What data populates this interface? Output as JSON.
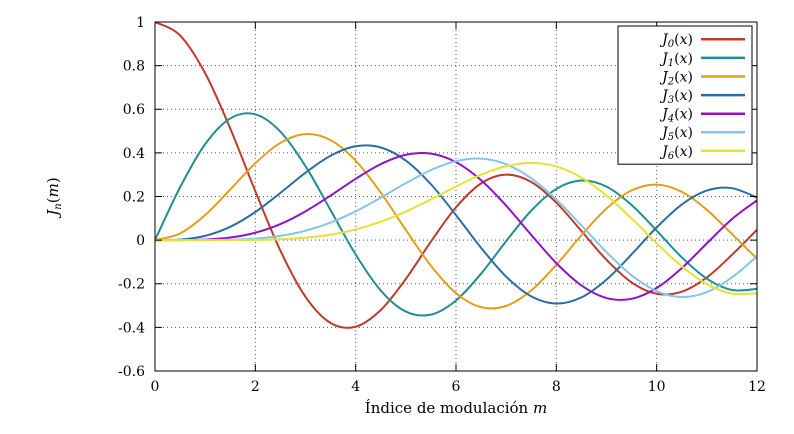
{
  "chart_data": {
    "type": "line",
    "title": "",
    "xlabel": "Índice de modulación m",
    "ylabel": "J_n(m)",
    "xlim": [
      0,
      12
    ],
    "ylim": [
      -0.6,
      1
    ],
    "xticks": [
      0,
      2,
      4,
      6,
      8,
      10,
      12
    ],
    "xtick_labels": [
      "0",
      "2",
      "4",
      "6",
      "8",
      "10",
      "12"
    ],
    "yticks": [
      -0.6,
      -0.4,
      -0.2,
      0,
      0.2,
      0.4,
      0.6,
      0.8,
      1
    ],
    "ytick_labels": [
      "-0.6",
      "-0.4",
      "-0.2",
      "0",
      "0.2",
      "0.4",
      "0.6",
      "0.8",
      "1"
    ],
    "grid": "dotted",
    "legend_position": "top-right",
    "colors": {
      "background": "#ffffff",
      "border": "#000000",
      "grid": "#555555",
      "text": "#000000"
    },
    "x": [
      0,
      0.5,
      1,
      1.5,
      2,
      2.5,
      3,
      3.5,
      4,
      4.5,
      5,
      5.5,
      6,
      6.5,
      7,
      7.5,
      8,
      8.5,
      9,
      9.5,
      10,
      10.5,
      11,
      11.5,
      12
    ],
    "series": [
      {
        "name": "J_0(x)",
        "color": "#c0392b",
        "values": [
          1,
          0.9385,
          0.7652,
          0.5118,
          0.2239,
          -0.0484,
          -0.2601,
          -0.3801,
          -0.3971,
          -0.3205,
          -0.1776,
          -0.0068,
          0.1506,
          0.2601,
          0.3001,
          0.2663,
          0.1717,
          0.0419,
          -0.0903,
          -0.1939,
          -0.2459,
          -0.2366,
          -0.1712,
          -0.0677,
          0.0477
        ]
      },
      {
        "name": "J_1(x)",
        "color": "#1e8f92",
        "values": [
          0,
          0.2423,
          0.4401,
          0.5579,
          0.5767,
          0.4971,
          0.3391,
          0.1374,
          -0.066,
          -0.2311,
          -0.3276,
          -0.3414,
          -0.2767,
          -0.1538,
          -0.0047,
          0.1352,
          0.2346,
          0.2731,
          0.2453,
          0.1613,
          0.0435,
          -0.0789,
          -0.1768,
          -0.2284,
          -0.2234
        ]
      },
      {
        "name": "J_2(x)",
        "color": "#e2a019",
        "values": [
          0,
          0.0306,
          0.1149,
          0.2321,
          0.3528,
          0.4461,
          0.4861,
          0.4586,
          0.3641,
          0.2178,
          0.0466,
          -0.1173,
          -0.2429,
          -0.3074,
          -0.3014,
          -0.2303,
          -0.113,
          0.0223,
          0.1448,
          0.2279,
          0.2546,
          0.2216,
          0.139,
          0.028,
          -0.0849
        ]
      },
      {
        "name": "J_3(x)",
        "color": "#2e6da4",
        "values": [
          0,
          0.0026,
          0.0196,
          0.061,
          0.1289,
          0.2166,
          0.3091,
          0.3868,
          0.4302,
          0.4247,
          0.3648,
          0.2561,
          0.1148,
          -0.0353,
          -0.1676,
          -0.258,
          -0.2911,
          -0.2626,
          -0.1809,
          -0.0653,
          0.0584,
          0.1633,
          0.2273,
          0.2381,
          0.1951
        ]
      },
      {
        "name": "J_4(x)",
        "color": "#9013c7",
        "values": [
          0,
          0.0002,
          0.0025,
          0.0118,
          0.034,
          0.0738,
          0.132,
          0.2044,
          0.2811,
          0.3484,
          0.3912,
          0.3967,
          0.3576,
          0.2748,
          0.1578,
          0.0239,
          -0.1054,
          -0.2077,
          -0.2655,
          -0.2691,
          -0.2196,
          -0.1283,
          -0.015,
          0.0962,
          0.1825
        ]
      },
      {
        "name": "J_5(x)",
        "color": "#86c5e8",
        "values": [
          0,
          0,
          0.0002,
          0.0018,
          0.007,
          0.0195,
          0.043,
          0.0804,
          0.1321,
          0.1947,
          0.2611,
          0.3209,
          0.3621,
          0.3736,
          0.3479,
          0.2835,
          0.1858,
          0.0671,
          -0.055,
          -0.1613,
          -0.2341,
          -0.2611,
          -0.2383,
          -0.1712,
          -0.0735
        ]
      },
      {
        "name": "J_6(x)",
        "color": "#e6e234",
        "values": [
          0,
          0,
          0,
          0.0002,
          0.0012,
          0.0042,
          0.0114,
          0.0254,
          0.0491,
          0.0843,
          0.131,
          0.1868,
          0.2458,
          0.3,
          0.3392,
          0.3541,
          0.3376,
          0.2867,
          0.2043,
          0.0993,
          -0.0145,
          -0.1203,
          -0.2016,
          -0.2451,
          -0.2437
        ]
      }
    ]
  }
}
